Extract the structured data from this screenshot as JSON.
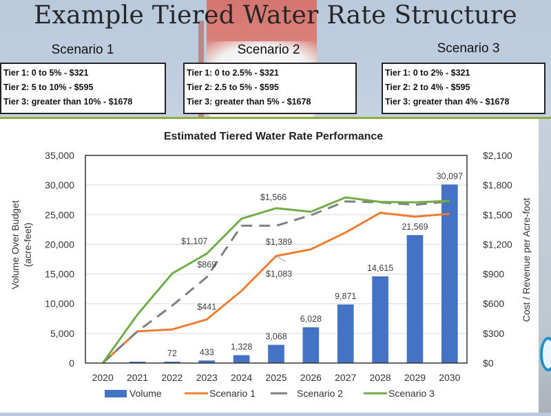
{
  "slide": {
    "title": "Example Tiered Water Rate Structure"
  },
  "scenarios": [
    {
      "name": "Scenario 1",
      "tiers": [
        "Tier 1:  0 to 5% - $321",
        "Tier 2:  5 to 10% - $595",
        "Tier 3:  greater than 10% - $1678"
      ]
    },
    {
      "name": "Scenario 2",
      "tiers": [
        "Tier 1:  0 to 2.5% - $321",
        "Tier 2:  2.5 to 5% - $595",
        "Tier 3:  greater than 5% - $1678"
      ]
    },
    {
      "name": "Scenario 3",
      "tiers": [
        "Tier 1:  0 to 2% - $321",
        "Tier 2:  2 to 4% - $595",
        "Tier 3:  greater than 4% - $1678"
      ]
    }
  ],
  "colors": {
    "volume": "#4472c4",
    "scenario1": "#ed7d31",
    "scenario2": "#7f7f7f",
    "scenario3": "#70ad47",
    "accent_divider": "#8fae3e"
  },
  "chart_data": {
    "type": "bar+line",
    "title": "Estimated Tiered Water Rate Performance",
    "xlabel": "",
    "ylabel": "Volume Over Budget\n(acre-feet)",
    "ylabel_lines": [
      "Volume Over Budget",
      "(acre-feet)"
    ],
    "y2label": "Cost / Revenue per Acre-foot",
    "categories": [
      "2020",
      "2021",
      "2022",
      "2023",
      "2024",
      "2025",
      "2026",
      "2027",
      "2028",
      "2029",
      "2030"
    ],
    "ylim": [
      0,
      35000
    ],
    "y_ticks": [
      0,
      5000,
      10000,
      15000,
      20000,
      25000,
      30000,
      35000
    ],
    "y_tick_labels": [
      "0",
      "5,000",
      "10,000",
      "15,000",
      "20,000",
      "25,000",
      "30,000",
      "35,000"
    ],
    "y2lim": [
      0,
      2100
    ],
    "y2_ticks": [
      0,
      300,
      600,
      900,
      1200,
      1500,
      1800,
      2100
    ],
    "y2_tick_labels": [
      "$0",
      "$300",
      "$600",
      "$900",
      "$1,200",
      "$1,500",
      "$1,800",
      "$2,100"
    ],
    "grid": true,
    "legend_position": "bottom",
    "bars": {
      "name": "Volume",
      "axis": "left",
      "values": [
        0,
        20,
        72,
        433,
        1328,
        3068,
        6028,
        9871,
        14615,
        21569,
        30097
      ],
      "labels": [
        "",
        "",
        "72",
        "433",
        "1,328",
        "3,068",
        "6,028",
        "9,871",
        "14,615",
        "21,569",
        "30,097"
      ]
    },
    "series": [
      {
        "name": "Scenario 1",
        "axis": "right",
        "style": "solid",
        "values": [
          0,
          321,
          340,
          441,
          730,
          1083,
          1150,
          1320,
          1520,
          1480,
          1510
        ]
      },
      {
        "name": "Scenario 2",
        "axis": "right",
        "style": "dashed",
        "values": [
          0,
          321,
          580,
          869,
          1389,
          1389,
          1495,
          1635,
          1625,
          1600,
          1635
        ]
      },
      {
        "name": "Scenario 3",
        "axis": "right",
        "style": "solid",
        "values": [
          0,
          490,
          905,
          1107,
          1460,
          1566,
          1530,
          1675,
          1630,
          1625,
          1640
        ]
      }
    ],
    "annotations": [
      {
        "series": "Scenario 1",
        "category": "2023",
        "text": "$441"
      },
      {
        "series": "Scenario 1",
        "category": "2025",
        "text": "$1,083"
      },
      {
        "series": "Scenario 2",
        "category": "2023",
        "text": "$869"
      },
      {
        "series": "Scenario 2",
        "category": "2025",
        "text": "$1,389"
      },
      {
        "series": "Scenario 3",
        "category": "2023",
        "text": "$1,107"
      },
      {
        "series": "Scenario 3",
        "category": "2025",
        "text": "$1,566"
      }
    ],
    "legend": [
      "Volume",
      "Scenario 1",
      "Scenario 2",
      "Scenario 3"
    ]
  }
}
